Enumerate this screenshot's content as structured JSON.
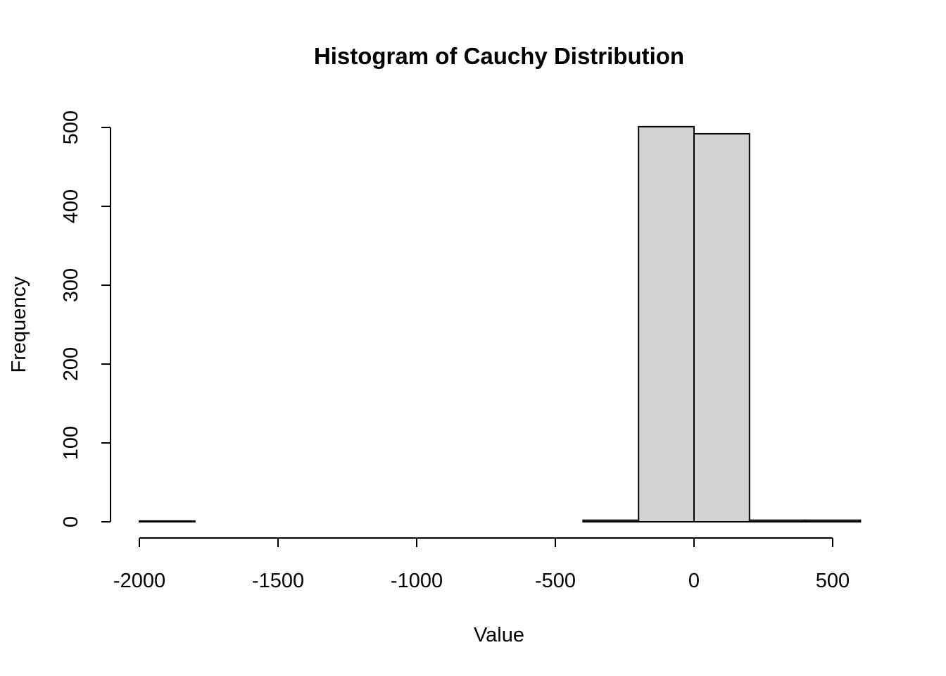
{
  "chart_data": {
    "type": "bar",
    "title": "Histogram of Cauchy Distribution",
    "xlabel": "Value",
    "ylabel": "Frequency",
    "bin_edges": [
      -2000,
      -1800,
      -1600,
      -1400,
      -1200,
      -1000,
      -800,
      -600,
      -400,
      -200,
      0,
      200,
      400,
      600
    ],
    "values": [
      1,
      0,
      0,
      0,
      0,
      0,
      0,
      0,
      2,
      501,
      492,
      2,
      2
    ],
    "xlim": [
      -2000,
      600
    ],
    "ylim": [
      0,
      500
    ],
    "x_ticks": [
      -2000,
      -1500,
      -1000,
      -500,
      0,
      500
    ],
    "y_ticks": [
      0,
      100,
      200,
      300,
      400,
      500
    ],
    "bar_fill": "#d3d3d3",
    "bar_stroke": "#000000",
    "grid": false,
    "legend": "none"
  }
}
